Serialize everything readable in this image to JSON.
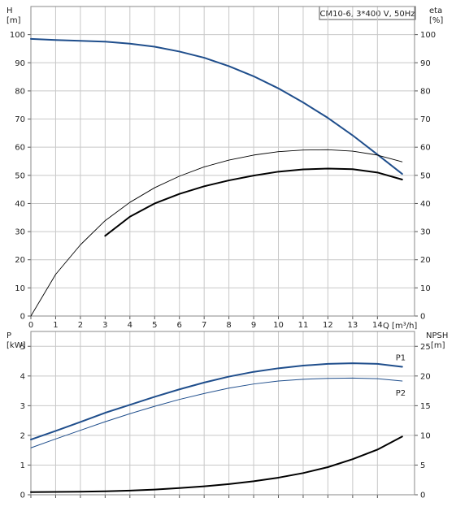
{
  "colors": {
    "blue": "#1f4e8c",
    "black": "#000000",
    "grid": "#c8c8c8"
  },
  "chart_data": [
    {
      "type": "line",
      "title": "CM10-6, 3*400 V, 50Hz",
      "xlabel": "Q [m³/h]",
      "x_ticks": [
        "0",
        "1",
        "2",
        "3",
        "4",
        "5",
        "6",
        "7",
        "8",
        "9",
        "10",
        "11",
        "12",
        "13",
        "14"
      ],
      "xlim": [
        0,
        15.5
      ],
      "ylabel_left": "H",
      "ylabel_left_unit": "[m]",
      "ylabel_right": "eta",
      "ylabel_right_unit": "[%]",
      "y_ticks": [
        "0",
        "10",
        "20",
        "30",
        "40",
        "50",
        "60",
        "70",
        "80",
        "90",
        "100"
      ],
      "ylim": [
        0,
        110
      ],
      "grid": true,
      "series": [
        {
          "color": "#1f4e8c",
          "width": 2,
          "x": [
            0,
            1,
            2,
            3,
            4,
            5,
            6,
            7,
            8,
            9,
            10,
            11,
            12,
            13,
            14,
            15
          ],
          "y": [
            98.5,
            98.1,
            97.8,
            97.5,
            96.8,
            95.7,
            94.0,
            91.8,
            88.8,
            85.2,
            80.9,
            75.9,
            70.4,
            64.2,
            57.4,
            50.5
          ]
        },
        {
          "color": "#000000",
          "width": 0.9,
          "x": [
            0,
            1,
            2,
            3,
            4,
            5,
            6,
            7,
            8,
            9,
            10,
            11,
            12,
            13,
            14,
            15
          ],
          "y": [
            0,
            14.8,
            25.3,
            33.9,
            40.4,
            45.6,
            49.7,
            53.0,
            55.4,
            57.2,
            58.4,
            59.0,
            59.1,
            58.6,
            57.2,
            54.8
          ]
        },
        {
          "color": "#000000",
          "width": 2,
          "x": [
            3,
            4,
            5,
            6,
            7,
            8,
            9,
            10,
            11,
            12,
            13,
            14,
            15
          ],
          "y": [
            28.5,
            35.3,
            40.0,
            43.4,
            46.1,
            48.2,
            49.9,
            51.3,
            52.1,
            52.4,
            52.2,
            51.0,
            48.5
          ]
        }
      ]
    },
    {
      "type": "line",
      "xlim": [
        0,
        15.5
      ],
      "ylabel_left": "P",
      "ylabel_left_unit": "[kW]",
      "ylabel_right": "NPSH",
      "ylabel_right_unit": "[m]",
      "y_ticks_left": [
        "0",
        "1",
        "2",
        "3",
        "4",
        "5"
      ],
      "ylim_left": [
        0,
        5.5
      ],
      "y_ticks_right": [
        "0",
        "5",
        "10",
        "15",
        "20",
        "25"
      ],
      "ylim_right": [
        0,
        27.5
      ],
      "grid": true,
      "series": [
        {
          "name": "P1",
          "axis": "left",
          "color": "#1f4e8c",
          "width": 2,
          "x": [
            0,
            1,
            2,
            3,
            4,
            5,
            6,
            7,
            8,
            9,
            10,
            11,
            12,
            13,
            14,
            15
          ],
          "y": [
            1.86,
            2.15,
            2.45,
            2.76,
            3.03,
            3.3,
            3.55,
            3.78,
            3.98,
            4.14,
            4.26,
            4.35,
            4.41,
            4.43,
            4.41,
            4.31
          ]
        },
        {
          "name": "P2",
          "axis": "left",
          "color": "#1f4e8c",
          "width": 1,
          "x": [
            0,
            1,
            2,
            3,
            4,
            5,
            6,
            7,
            8,
            9,
            10,
            11,
            12,
            13,
            14,
            15
          ],
          "y": [
            1.58,
            1.88,
            2.17,
            2.46,
            2.73,
            2.98,
            3.21,
            3.41,
            3.59,
            3.73,
            3.83,
            3.89,
            3.92,
            3.93,
            3.91,
            3.83
          ]
        },
        {
          "axis": "right",
          "color": "#000000",
          "width": 2,
          "x": [
            0,
            1,
            2,
            3,
            4,
            5,
            6,
            7,
            8,
            9,
            10,
            11,
            12,
            13,
            14,
            15
          ],
          "y": [
            0.45,
            0.48,
            0.52,
            0.58,
            0.7,
            0.88,
            1.12,
            1.42,
            1.8,
            2.28,
            2.88,
            3.65,
            4.65,
            6.0,
            7.6,
            9.8
          ]
        }
      ]
    }
  ]
}
